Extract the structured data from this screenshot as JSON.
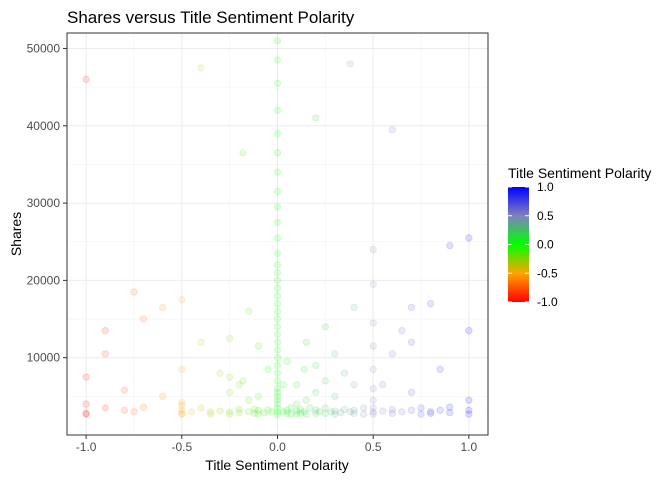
{
  "chart_data": {
    "type": "scatter",
    "title": "Shares versus Title Sentiment Polarity",
    "xlabel": "Title Sentiment Polarity",
    "ylabel": "Shares",
    "xlim": [
      -1.1,
      1.1
    ],
    "ylim": [
      0,
      52000
    ],
    "x_ticks": [
      -1.0,
      -0.5,
      0.0,
      0.5,
      1.0
    ],
    "x_tick_labels": [
      "-1.0",
      "-0.5",
      "0.0",
      "0.5",
      "1.0"
    ],
    "y_ticks": [
      10000,
      20000,
      30000,
      40000,
      50000
    ],
    "y_tick_labels": [
      "10000",
      "20000",
      "30000",
      "40000",
      "50000"
    ],
    "grid": true,
    "legend": {
      "title": "Title Sentiment Polarity",
      "position": "right",
      "range": [
        -1.0,
        1.0
      ],
      "ticks": [
        1.0,
        0.5,
        0.0,
        -0.5,
        -1.0
      ],
      "tick_labels": [
        "1.0",
        "0.5",
        "0.0",
        "-0.5",
        "-1.0"
      ],
      "colors": [
        {
          "value": -1.0,
          "color": "#ff0000"
        },
        {
          "value": -0.5,
          "color": "#ffa500"
        },
        {
          "value": 0.0,
          "color": "#00ff00"
        },
        {
          "value": 0.5,
          "color": "#8080c0"
        },
        {
          "value": 1.0,
          "color": "#0000ff"
        }
      ]
    },
    "point_alpha": 0.08,
    "points": [
      {
        "x": -1.0,
        "y": 46000
      },
      {
        "x": -1.0,
        "y": 7500
      },
      {
        "x": -1.0,
        "y": 4000
      },
      {
        "x": -1.0,
        "y": 2800
      },
      {
        "x": -1.0,
        "y": 2700
      },
      {
        "x": -0.9,
        "y": 13500
      },
      {
        "x": -0.9,
        "y": 10500
      },
      {
        "x": -0.9,
        "y": 3500
      },
      {
        "x": -0.8,
        "y": 5800
      },
      {
        "x": -0.8,
        "y": 3200
      },
      {
        "x": -0.75,
        "y": 18500
      },
      {
        "x": -0.75,
        "y": 3000
      },
      {
        "x": -0.7,
        "y": 15000
      },
      {
        "x": -0.7,
        "y": 3600
      },
      {
        "x": -0.6,
        "y": 16500
      },
      {
        "x": -0.6,
        "y": 5000
      },
      {
        "x": -0.5,
        "y": 17500
      },
      {
        "x": -0.5,
        "y": 8500
      },
      {
        "x": -0.5,
        "y": 4200
      },
      {
        "x": -0.5,
        "y": 3800
      },
      {
        "x": -0.5,
        "y": 3200
      },
      {
        "x": -0.5,
        "y": 2800
      },
      {
        "x": -0.5,
        "y": 2700
      },
      {
        "x": -0.45,
        "y": 3000
      },
      {
        "x": -0.4,
        "y": 47500
      },
      {
        "x": -0.4,
        "y": 12000
      },
      {
        "x": -0.4,
        "y": 3500
      },
      {
        "x": -0.35,
        "y": 3000
      },
      {
        "x": -0.35,
        "y": 2700
      },
      {
        "x": -0.3,
        "y": 8000
      },
      {
        "x": -0.3,
        "y": 3100
      },
      {
        "x": -0.25,
        "y": 12500
      },
      {
        "x": -0.25,
        "y": 7500
      },
      {
        "x": -0.25,
        "y": 5500
      },
      {
        "x": -0.25,
        "y": 3000
      },
      {
        "x": -0.25,
        "y": 2700
      },
      {
        "x": -0.2,
        "y": 6500
      },
      {
        "x": -0.2,
        "y": 3300
      },
      {
        "x": -0.2,
        "y": 2900
      },
      {
        "x": -0.18,
        "y": 36500
      },
      {
        "x": -0.18,
        "y": 7000
      },
      {
        "x": -0.15,
        "y": 16000
      },
      {
        "x": -0.15,
        "y": 4500
      },
      {
        "x": -0.15,
        "y": 3000
      },
      {
        "x": -0.12,
        "y": 3300
      },
      {
        "x": -0.12,
        "y": 2800
      },
      {
        "x": -0.1,
        "y": 11500
      },
      {
        "x": -0.1,
        "y": 5000
      },
      {
        "x": -0.1,
        "y": 3200
      },
      {
        "x": -0.1,
        "y": 2700
      },
      {
        "x": -0.07,
        "y": 2900
      },
      {
        "x": -0.05,
        "y": 8500
      },
      {
        "x": -0.05,
        "y": 3200
      },
      {
        "x": -0.03,
        "y": 3000
      },
      {
        "x": 0.0,
        "y": 51000
      },
      {
        "x": 0.0,
        "y": 48500
      },
      {
        "x": 0.0,
        "y": 45500
      },
      {
        "x": 0.0,
        "y": 42000
      },
      {
        "x": 0.0,
        "y": 39000
      },
      {
        "x": 0.0,
        "y": 36500
      },
      {
        "x": 0.0,
        "y": 34000
      },
      {
        "x": 0.0,
        "y": 31500
      },
      {
        "x": 0.0,
        "y": 29500
      },
      {
        "x": 0.0,
        "y": 27500
      },
      {
        "x": 0.0,
        "y": 25500
      },
      {
        "x": 0.0,
        "y": 23500
      },
      {
        "x": 0.0,
        "y": 22000
      },
      {
        "x": 0.0,
        "y": 21000
      },
      {
        "x": 0.0,
        "y": 20000
      },
      {
        "x": 0.0,
        "y": 19000
      },
      {
        "x": 0.0,
        "y": 18000
      },
      {
        "x": 0.0,
        "y": 17000
      },
      {
        "x": 0.0,
        "y": 16000
      },
      {
        "x": 0.0,
        "y": 15000
      },
      {
        "x": 0.0,
        "y": 14000
      },
      {
        "x": 0.0,
        "y": 13000
      },
      {
        "x": 0.0,
        "y": 12000
      },
      {
        "x": 0.0,
        "y": 11000
      },
      {
        "x": 0.0,
        "y": 10000
      },
      {
        "x": 0.0,
        "y": 9000
      },
      {
        "x": 0.0,
        "y": 8000
      },
      {
        "x": 0.0,
        "y": 7000
      },
      {
        "x": 0.0,
        "y": 6000
      },
      {
        "x": 0.0,
        "y": 5500
      },
      {
        "x": 0.0,
        "y": 5000
      },
      {
        "x": 0.0,
        "y": 4500
      },
      {
        "x": 0.0,
        "y": 4000
      },
      {
        "x": 0.0,
        "y": 3500
      },
      {
        "x": 0.0,
        "y": 3000
      },
      {
        "x": 0.0,
        "y": 2600
      },
      {
        "x": 0.03,
        "y": 3000
      },
      {
        "x": 0.03,
        "y": 6500
      },
      {
        "x": 0.05,
        "y": 9500
      },
      {
        "x": 0.05,
        "y": 3200
      },
      {
        "x": 0.05,
        "y": 2800
      },
      {
        "x": 0.07,
        "y": 3500
      },
      {
        "x": 0.07,
        "y": 2700
      },
      {
        "x": 0.1,
        "y": 6500
      },
      {
        "x": 0.1,
        "y": 4000
      },
      {
        "x": 0.1,
        "y": 3100
      },
      {
        "x": 0.1,
        "y": 2700
      },
      {
        "x": 0.12,
        "y": 3300
      },
      {
        "x": 0.12,
        "y": 2800
      },
      {
        "x": 0.14,
        "y": 8500
      },
      {
        "x": 0.14,
        "y": 3000
      },
      {
        "x": 0.15,
        "y": 12000
      },
      {
        "x": 0.15,
        "y": 4500
      },
      {
        "x": 0.15,
        "y": 2700
      },
      {
        "x": 0.17,
        "y": 3500
      },
      {
        "x": 0.2,
        "y": 41000
      },
      {
        "x": 0.2,
        "y": 9000
      },
      {
        "x": 0.2,
        "y": 5500
      },
      {
        "x": 0.2,
        "y": 3200
      },
      {
        "x": 0.2,
        "y": 2800
      },
      {
        "x": 0.22,
        "y": 3000
      },
      {
        "x": 0.25,
        "y": 14000
      },
      {
        "x": 0.25,
        "y": 7000
      },
      {
        "x": 0.25,
        "y": 3500
      },
      {
        "x": 0.25,
        "y": 2800
      },
      {
        "x": 0.28,
        "y": 3000
      },
      {
        "x": 0.3,
        "y": 10500
      },
      {
        "x": 0.3,
        "y": 5000
      },
      {
        "x": 0.3,
        "y": 3100
      },
      {
        "x": 0.3,
        "y": 2700
      },
      {
        "x": 0.33,
        "y": 2900
      },
      {
        "x": 0.35,
        "y": 8000
      },
      {
        "x": 0.35,
        "y": 3300
      },
      {
        "x": 0.38,
        "y": 48000
      },
      {
        "x": 0.38,
        "y": 3000
      },
      {
        "x": 0.4,
        "y": 16500
      },
      {
        "x": 0.4,
        "y": 6500
      },
      {
        "x": 0.4,
        "y": 3200
      },
      {
        "x": 0.4,
        "y": 2800
      },
      {
        "x": 0.45,
        "y": 3500
      },
      {
        "x": 0.45,
        "y": 2700
      },
      {
        "x": 0.5,
        "y": 24000
      },
      {
        "x": 0.5,
        "y": 19500
      },
      {
        "x": 0.5,
        "y": 14500
      },
      {
        "x": 0.5,
        "y": 11500
      },
      {
        "x": 0.5,
        "y": 8500
      },
      {
        "x": 0.5,
        "y": 6000
      },
      {
        "x": 0.5,
        "y": 4500
      },
      {
        "x": 0.5,
        "y": 3500
      },
      {
        "x": 0.5,
        "y": 3000
      },
      {
        "x": 0.5,
        "y": 2700
      },
      {
        "x": 0.55,
        "y": 6500
      },
      {
        "x": 0.55,
        "y": 3100
      },
      {
        "x": 0.6,
        "y": 39500
      },
      {
        "x": 0.6,
        "y": 10500
      },
      {
        "x": 0.6,
        "y": 3300
      },
      {
        "x": 0.6,
        "y": 2800
      },
      {
        "x": 0.65,
        "y": 13500
      },
      {
        "x": 0.65,
        "y": 3000
      },
      {
        "x": 0.7,
        "y": 16500
      },
      {
        "x": 0.7,
        "y": 12000
      },
      {
        "x": 0.7,
        "y": 5500
      },
      {
        "x": 0.7,
        "y": 3200
      },
      {
        "x": 0.75,
        "y": 3500
      },
      {
        "x": 0.75,
        "y": 2700
      },
      {
        "x": 0.8,
        "y": 17000
      },
      {
        "x": 0.8,
        "y": 3000
      },
      {
        "x": 0.8,
        "y": 2800
      },
      {
        "x": 0.85,
        "y": 8500
      },
      {
        "x": 0.85,
        "y": 3200
      },
      {
        "x": 0.9,
        "y": 24500
      },
      {
        "x": 0.9,
        "y": 3600
      },
      {
        "x": 0.9,
        "y": 2900
      },
      {
        "x": 1.0,
        "y": 25500
      },
      {
        "x": 1.0,
        "y": 13500
      },
      {
        "x": 1.0,
        "y": 4500
      },
      {
        "x": 1.0,
        "y": 3200
      },
      {
        "x": 1.0,
        "y": 2700
      }
    ]
  }
}
